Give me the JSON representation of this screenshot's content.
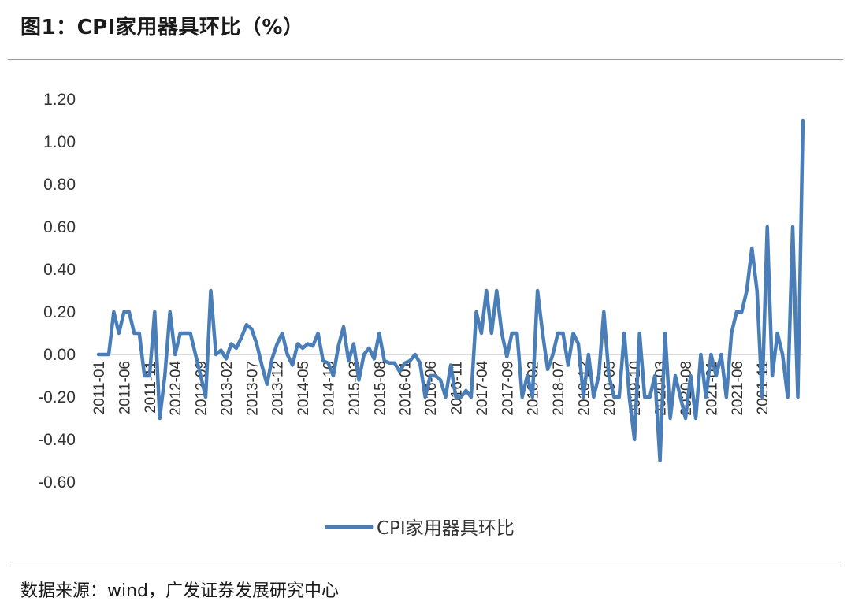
{
  "header": {
    "title": "图1：CPI家用器具环比（%）"
  },
  "footer": {
    "source": "数据来源：wind，广发证券发展研究中心"
  },
  "colors": {
    "line": "#4a7eb8",
    "axis": "#d0d0d0"
  },
  "chart_data": {
    "type": "line",
    "title": "图1：CPI家用器具环比（%）",
    "xlabel": "",
    "ylabel": "",
    "ylim": [
      -0.6,
      1.2
    ],
    "ytick_labels": [
      "1.20",
      "1.00",
      "0.80",
      "0.60",
      "0.40",
      "0.20",
      "0.00",
      "-0.20",
      "-0.40",
      "-0.60"
    ],
    "xtick_labels": [
      "2011-01",
      "2011-06",
      "2011-11",
      "2012-04",
      "2012-09",
      "2013-02",
      "2013-07",
      "2013-12",
      "2014-05",
      "2014-10",
      "2015-03",
      "2015-08",
      "2016-01",
      "2016-06",
      "2016-11",
      "2017-04",
      "2017-09",
      "2018-02",
      "2018-07",
      "2018-12",
      "2019-05",
      "2019-10",
      "2020-03",
      "2020-08",
      "2021-01",
      "2021-06",
      "2021-11"
    ],
    "legend": "bottom-center",
    "series": [
      {
        "name": "CPI家用器具环比",
        "values": [
          0.0,
          0.0,
          0.0,
          0.2,
          0.1,
          0.2,
          0.2,
          0.1,
          0.1,
          -0.1,
          -0.1,
          0.2,
          -0.3,
          -0.1,
          0.2,
          0.0,
          0.1,
          0.1,
          0.1,
          0.0,
          -0.1,
          -0.2,
          0.3,
          0.0,
          0.02,
          -0.02,
          0.05,
          0.03,
          0.08,
          0.14,
          0.12,
          0.05,
          -0.05,
          -0.14,
          -0.02,
          0.05,
          0.1,
          0.0,
          -0.05,
          0.05,
          0.03,
          0.05,
          0.04,
          0.1,
          -0.03,
          -0.04,
          -0.1,
          0.04,
          0.13,
          -0.03,
          0.05,
          -0.12,
          0.0,
          0.03,
          -0.02,
          0.1,
          -0.03,
          -0.04,
          -0.04,
          -0.08,
          -0.04,
          -0.03,
          0.0,
          -0.04,
          -0.2,
          -0.1,
          -0.1,
          -0.12,
          -0.2,
          -0.05,
          -0.2,
          -0.2,
          -0.17,
          -0.2,
          0.2,
          0.1,
          0.3,
          0.1,
          0.3,
          0.1,
          -0.01,
          0.1,
          0.1,
          -0.2,
          -0.1,
          -0.2,
          0.3,
          0.1,
          -0.07,
          0.0,
          0.1,
          0.1,
          -0.05,
          0.1,
          0.05,
          -0.2,
          0.0,
          -0.2,
          -0.1,
          0.2,
          -0.1,
          -0.2,
          -0.2,
          0.1,
          -0.2,
          -0.4,
          0.1,
          -0.2,
          -0.2,
          -0.1,
          -0.5,
          0.1,
          -0.3,
          -0.1,
          -0.2,
          -0.3,
          -0.1,
          -0.3,
          0.0,
          -0.2,
          0.0,
          -0.1,
          0.0,
          -0.2,
          0.1,
          0.2,
          0.2,
          0.3,
          0.5,
          0.3,
          -0.2,
          0.6,
          -0.1,
          0.1,
          0.0,
          -0.2,
          0.6,
          -0.2,
          1.1
        ]
      }
    ]
  }
}
